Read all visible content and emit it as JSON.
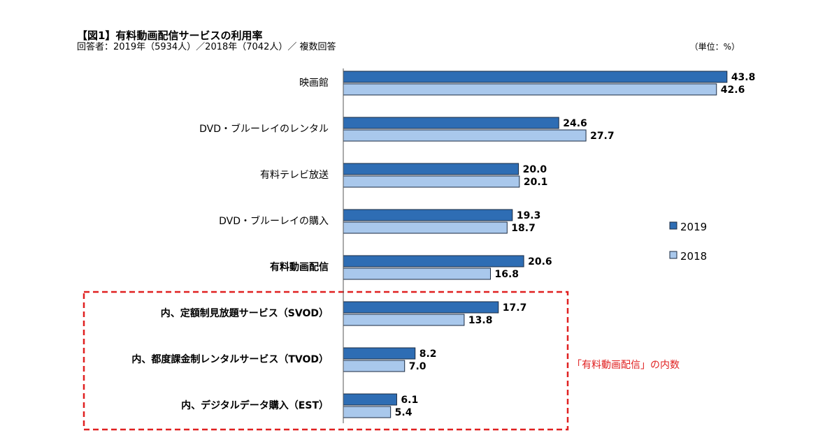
{
  "chart_data": {
    "type": "bar",
    "orientation": "horizontal",
    "title": "【図1】有料動画配信サービスの利用率",
    "subtitle": "回答者：2019年（5934人）／2018年（7042人）／ 複数回答",
    "unit_label": "（単位：%）",
    "categories": [
      "映画館",
      "DVD・ブルーレイのレンタル",
      "有料テレビ放送",
      "DVD・ブルーレイの購入",
      "有料動画配信",
      "内、定額制見放題サービス（SVOD）",
      "内、都度課金制レンタルサービス（TVOD）",
      "内、デジタルデータ購入（EST）"
    ],
    "bold_categories": [
      false,
      false,
      false,
      false,
      true,
      true,
      true,
      true
    ],
    "series": [
      {
        "name": "2019",
        "color": "#2e6db4",
        "values": [
          43.8,
          24.6,
          20.0,
          19.3,
          20.6,
          17.7,
          8.2,
          6.1
        ]
      },
      {
        "name": "2018",
        "color": "#a9c8ec",
        "values": [
          42.6,
          27.7,
          20.1,
          18.7,
          16.8,
          13.8,
          7.0,
          5.4
        ]
      }
    ],
    "xlim": [
      0,
      45
    ],
    "legend": "right",
    "annotation": "「有料動画配信」の内数",
    "annotation_color": "#e02020"
  }
}
